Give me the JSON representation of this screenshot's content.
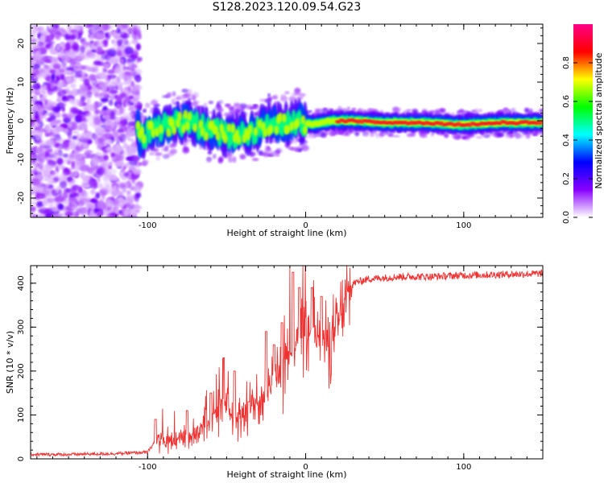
{
  "title": "S128.2023.120.09.54.G23",
  "chart_data": [
    {
      "type": "heatmap",
      "title": "S128.2023.120.09.54.G23",
      "xlabel": "Height of straight line (km)",
      "ylabel": "Frequency (Hz)",
      "xlim": [
        -174,
        150
      ],
      "ylim": [
        -25,
        25
      ],
      "xticks": [
        -100,
        0,
        100
      ],
      "yticks": [
        -20,
        -10,
        0,
        10,
        20
      ],
      "colorbar": {
        "label": "Normalized spectral amplitude",
        "range": [
          0.0,
          1.0
        ],
        "ticks": [
          0.0,
          0.2,
          0.4,
          0.6,
          0.8
        ],
        "colormap": [
          "#ffffff",
          "#8800ff",
          "#0000ff",
          "#00ffff",
          "#00ff00",
          "#ffff00",
          "#ff0000",
          "#ff0088"
        ]
      },
      "features": {
        "noise_region_x": [
          -174,
          -105
        ],
        "signal_centerline": {
          "x": [
            -105,
            -95,
            -85,
            -75,
            -65,
            -55,
            -45,
            -35,
            -25,
            -15,
            -5,
            5,
            15,
            30,
            50,
            75,
            100,
            125,
            150
          ],
          "y": [
            -5,
            -2,
            -1,
            0,
            -2,
            -3,
            -4,
            -3,
            -1,
            -1,
            0,
            -1,
            0,
            0,
            -0.5,
            -0.5,
            -1,
            -0.5,
            -0.5
          ]
        }
      }
    },
    {
      "type": "line",
      "xlabel": "Height of straight line (km)",
      "ylabel": "SNR (10 * v/v)",
      "xlim": [
        -174,
        150
      ],
      "ylim": [
        0,
        440
      ],
      "xticks": [
        -100,
        0,
        100
      ],
      "yticks": [
        0,
        100,
        200,
        300,
        400
      ],
      "color": "#ee3333",
      "series": [
        {
          "x": [
            -174,
            -150,
            -120,
            -100,
            -97,
            -94,
            -90,
            -85,
            -80,
            -75,
            -70,
            -65,
            -60,
            -55,
            -50,
            -45,
            -40,
            -35,
            -30,
            -25,
            -20,
            -15,
            -12,
            -8,
            -5,
            0,
            5,
            10,
            15,
            20,
            25,
            30,
            40,
            60,
            80,
            100,
            125,
            150
          ],
          "y": [
            10,
            10,
            12,
            15,
            30,
            50,
            40,
            35,
            50,
            45,
            60,
            80,
            90,
            120,
            110,
            100,
            90,
            120,
            130,
            160,
            170,
            200,
            250,
            230,
            290,
            270,
            300,
            280,
            260,
            300,
            360,
            400,
            410,
            415,
            415,
            418,
            420,
            422
          ],
          "peaks": {
            "x": [
              -95,
              -75,
              -60,
              -52,
              -45,
              -36,
              -25,
              -20,
              -15,
              -8,
              -4,
              4,
              10
            ],
            "y": [
              90,
              110,
              150,
              230,
              200,
              130,
              290,
              260,
              310,
              425,
              390,
              390,
              370
            ]
          }
        }
      ]
    }
  ]
}
